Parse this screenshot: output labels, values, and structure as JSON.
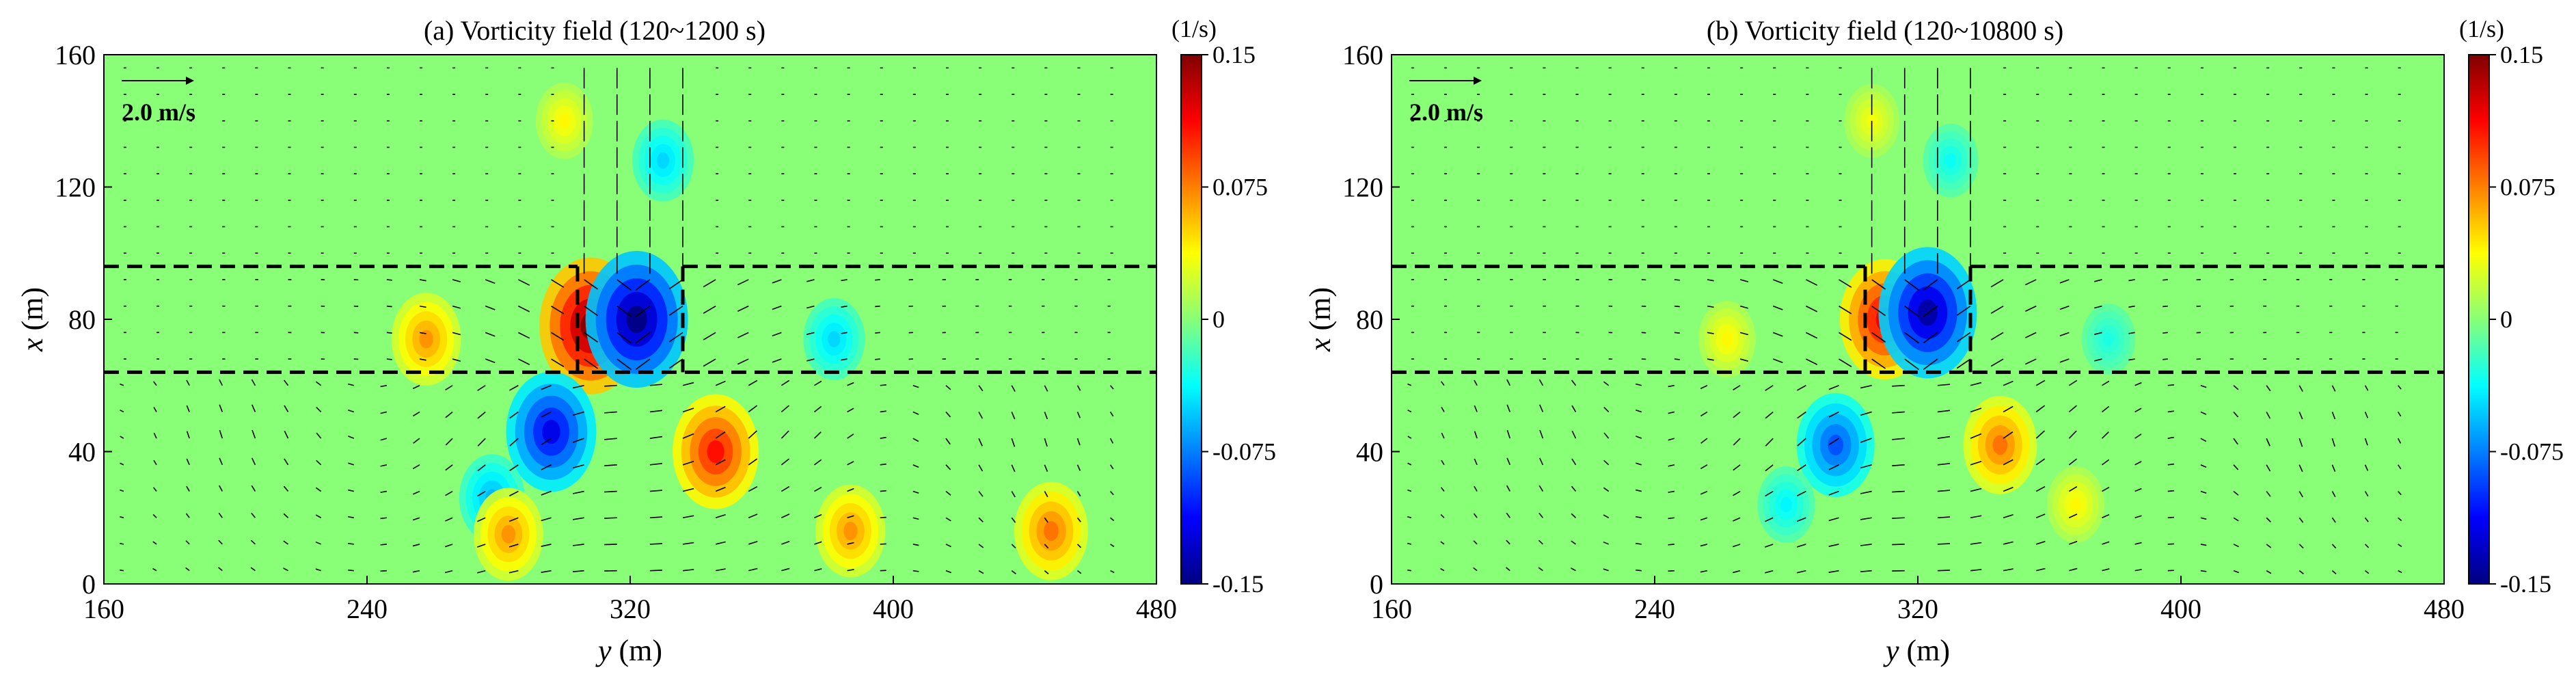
{
  "chart_data": [
    {
      "type": "heatmap",
      "panel": "a",
      "title": "(a) Vorticity field (120~1200 s)",
      "xlabel": "y (m)",
      "xlabel_var": "y",
      "xlabel_unit": " (m)",
      "ylabel": "x (m)",
      "ylabel_var": "x",
      "ylabel_unit": " (m)",
      "xlim": [
        160,
        480
      ],
      "ylim": [
        0,
        160
      ],
      "xticks": [
        160,
        240,
        320,
        400,
        480
      ],
      "yticks": [
        0,
        40,
        80,
        120,
        160
      ],
      "colorbar": {
        "unit": "(1/s)",
        "range": [
          -0.15,
          0.15
        ],
        "ticks": [
          0.15,
          0.075,
          0,
          -0.075,
          -0.15
        ],
        "tick_labels": [
          "0.15",
          "0.075",
          "0",
          "-0.075",
          "-0.15"
        ]
      },
      "vector_scale_label": "2.0 m/s",
      "boundaries": {
        "upper_x": 96,
        "lower_x": 64,
        "channel_left_y": 304,
        "channel_right_y": 336
      },
      "vortices": [
        {
          "y": 308,
          "x": 78,
          "value": 0.15
        },
        {
          "y": 322,
          "x": 80,
          "value": -0.15
        },
        {
          "y": 296,
          "x": 46,
          "value": -0.12
        },
        {
          "y": 346,
          "x": 40,
          "value": 0.11
        },
        {
          "y": 258,
          "x": 74,
          "value": 0.07
        },
        {
          "y": 278,
          "x": 26,
          "value": -0.06
        },
        {
          "y": 382,
          "x": 74,
          "value": -0.05
        },
        {
          "y": 283,
          "x": 15,
          "value": 0.07
        },
        {
          "y": 387,
          "x": 16,
          "value": 0.07
        },
        {
          "y": 448,
          "x": 16,
          "value": 0.08
        },
        {
          "y": 300,
          "x": 140,
          "value": 0.04
        },
        {
          "y": 330,
          "x": 128,
          "value": -0.05
        }
      ]
    },
    {
      "type": "heatmap",
      "panel": "b",
      "title": "(b) Vorticity field (120~10800 s)",
      "xlabel": "y (m)",
      "xlabel_var": "y",
      "xlabel_unit": " (m)",
      "ylabel": "x (m)",
      "ylabel_var": "x",
      "ylabel_unit": " (m)",
      "xlim": [
        160,
        480
      ],
      "ylim": [
        0,
        160
      ],
      "xticks": [
        160,
        240,
        320,
        400,
        480
      ],
      "yticks": [
        0,
        40,
        80,
        120,
        160
      ],
      "colorbar": {
        "unit": "(1/s)",
        "range": [
          -0.15,
          0.15
        ],
        "ticks": [
          0.15,
          0.075,
          0,
          -0.075,
          -0.15
        ],
        "tick_labels": [
          "0.15",
          "0.075",
          "0",
          "-0.075",
          "-0.15"
        ]
      },
      "vector_scale_label": "2.0 m/s",
      "boundaries": {
        "upper_x": 96,
        "lower_x": 64,
        "channel_left_y": 304,
        "channel_right_y": 336
      },
      "vortices": [
        {
          "y": 310,
          "x": 80,
          "value": 0.12
        },
        {
          "y": 323,
          "x": 82,
          "value": -0.14
        },
        {
          "y": 295,
          "x": 42,
          "value": -0.09
        },
        {
          "y": 345,
          "x": 42,
          "value": 0.08
        },
        {
          "y": 262,
          "x": 74,
          "value": 0.04
        },
        {
          "y": 378,
          "x": 74,
          "value": -0.03
        },
        {
          "y": 280,
          "x": 24,
          "value": -0.04
        },
        {
          "y": 368,
          "x": 24,
          "value": 0.04
        },
        {
          "y": 306,
          "x": 140,
          "value": 0.035
        },
        {
          "y": 330,
          "x": 128,
          "value": -0.035
        }
      ]
    }
  ]
}
